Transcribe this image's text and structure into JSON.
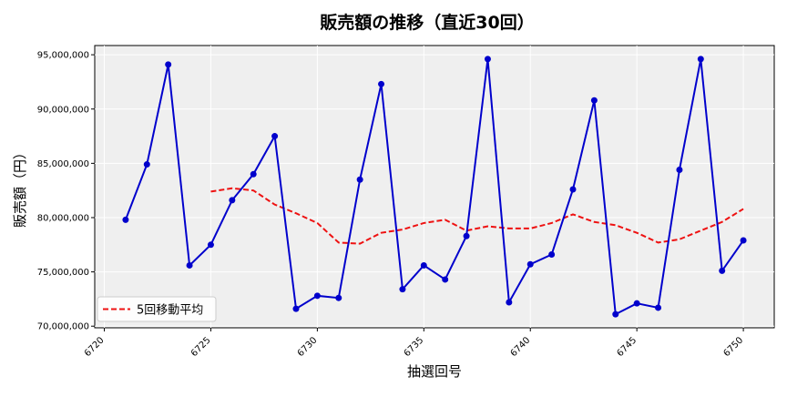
{
  "chart_data": {
    "type": "line",
    "title": "販売額の推移（直近30回）",
    "xlabel": "抽選回号",
    "ylabel": "販売額（円）",
    "x": [
      6721,
      6722,
      6723,
      6724,
      6725,
      6726,
      6727,
      6728,
      6729,
      6730,
      6731,
      6732,
      6733,
      6734,
      6735,
      6736,
      6737,
      6738,
      6739,
      6740,
      6741,
      6742,
      6743,
      6744,
      6745,
      6746,
      6747,
      6748,
      6749,
      6750
    ],
    "xlim": [
      6719.55,
      6751.45
    ],
    "ylim": [
      69850000,
      95850000
    ],
    "x_ticks": [
      6720,
      6725,
      6730,
      6735,
      6740,
      6745,
      6750
    ],
    "x_tick_labels": [
      "6720",
      "6725",
      "6730",
      "6735",
      "6740",
      "6745",
      "6750"
    ],
    "y_ticks": [
      70000000,
      75000000,
      80000000,
      85000000,
      90000000,
      95000000
    ],
    "y_tick_labels": [
      "70,000,000",
      "75,000,000",
      "80,000,000",
      "85,000,000",
      "90,000,000",
      "95,000,000"
    ],
    "grid": true,
    "legend_position": "bottom-left",
    "series": [
      {
        "key": "sales",
        "style": "solid-with-markers",
        "color": "#0000cc",
        "values": [
          79800000,
          84900000,
          94100000,
          75600000,
          77500000,
          81600000,
          84000000,
          87500000,
          71600000,
          72800000,
          72600000,
          83500000,
          92300000,
          73400000,
          75600000,
          74300000,
          78300000,
          94600000,
          72200000,
          75700000,
          76600000,
          82600000,
          90800000,
          71100000,
          72100000,
          71700000,
          84400000,
          94600000,
          75100000,
          77900000
        ]
      },
      {
        "key": "moving_average",
        "name": "5回移動平均",
        "style": "dashed",
        "color": "#ee1111",
        "values": [
          null,
          null,
          null,
          null,
          82400000,
          82700000,
          82500000,
          81200000,
          80400000,
          79500000,
          77700000,
          77600000,
          78600000,
          78900000,
          79500000,
          79800000,
          78800000,
          79200000,
          79000000,
          79000000,
          79500000,
          80300000,
          79600000,
          79300000,
          78600000,
          77700000,
          78000000,
          78800000,
          79600000,
          80800000
        ]
      }
    ]
  }
}
